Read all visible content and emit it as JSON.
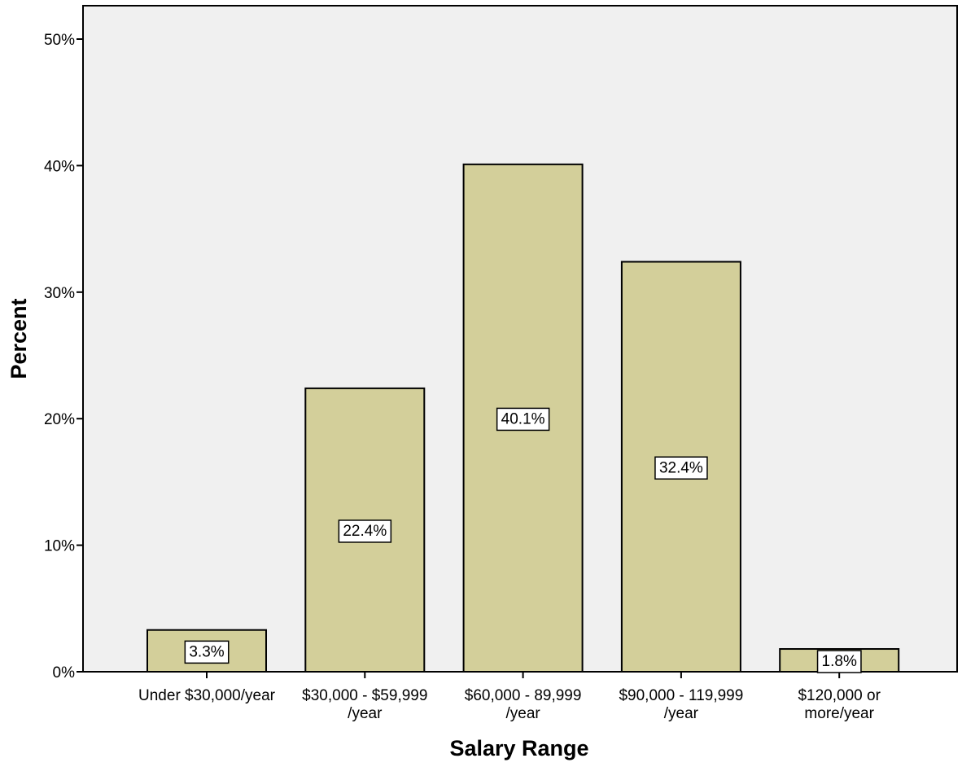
{
  "chart_data": {
    "type": "bar",
    "categories": [
      [
        "Under $30,000/year"
      ],
      [
        "$30,000 - $59,999",
        "/year"
      ],
      [
        "$60,000 - 89,999",
        "/year"
      ],
      [
        "$90,000 - 119,999",
        "/year"
      ],
      [
        "$120,000 or",
        "more/year"
      ]
    ],
    "values": [
      3.3,
      22.4,
      40.1,
      32.4,
      1.8
    ],
    "data_labels": [
      "3.3%",
      "22.4%",
      "40.1%",
      "32.4%",
      "1.8%"
    ],
    "xlabel": "Salary Range",
    "ylabel": "Percent",
    "ylim": [
      0,
      50
    ],
    "yticks": [
      0,
      10,
      20,
      30,
      40,
      50
    ],
    "ytick_labels": [
      "0%",
      "10%",
      "20%",
      "30%",
      "40%",
      "50%"
    ],
    "grid": false,
    "colors": {
      "bar_fill": "#d3cf9a",
      "plot_background": "#f0f0f0",
      "label_box": "#ffffff"
    }
  }
}
